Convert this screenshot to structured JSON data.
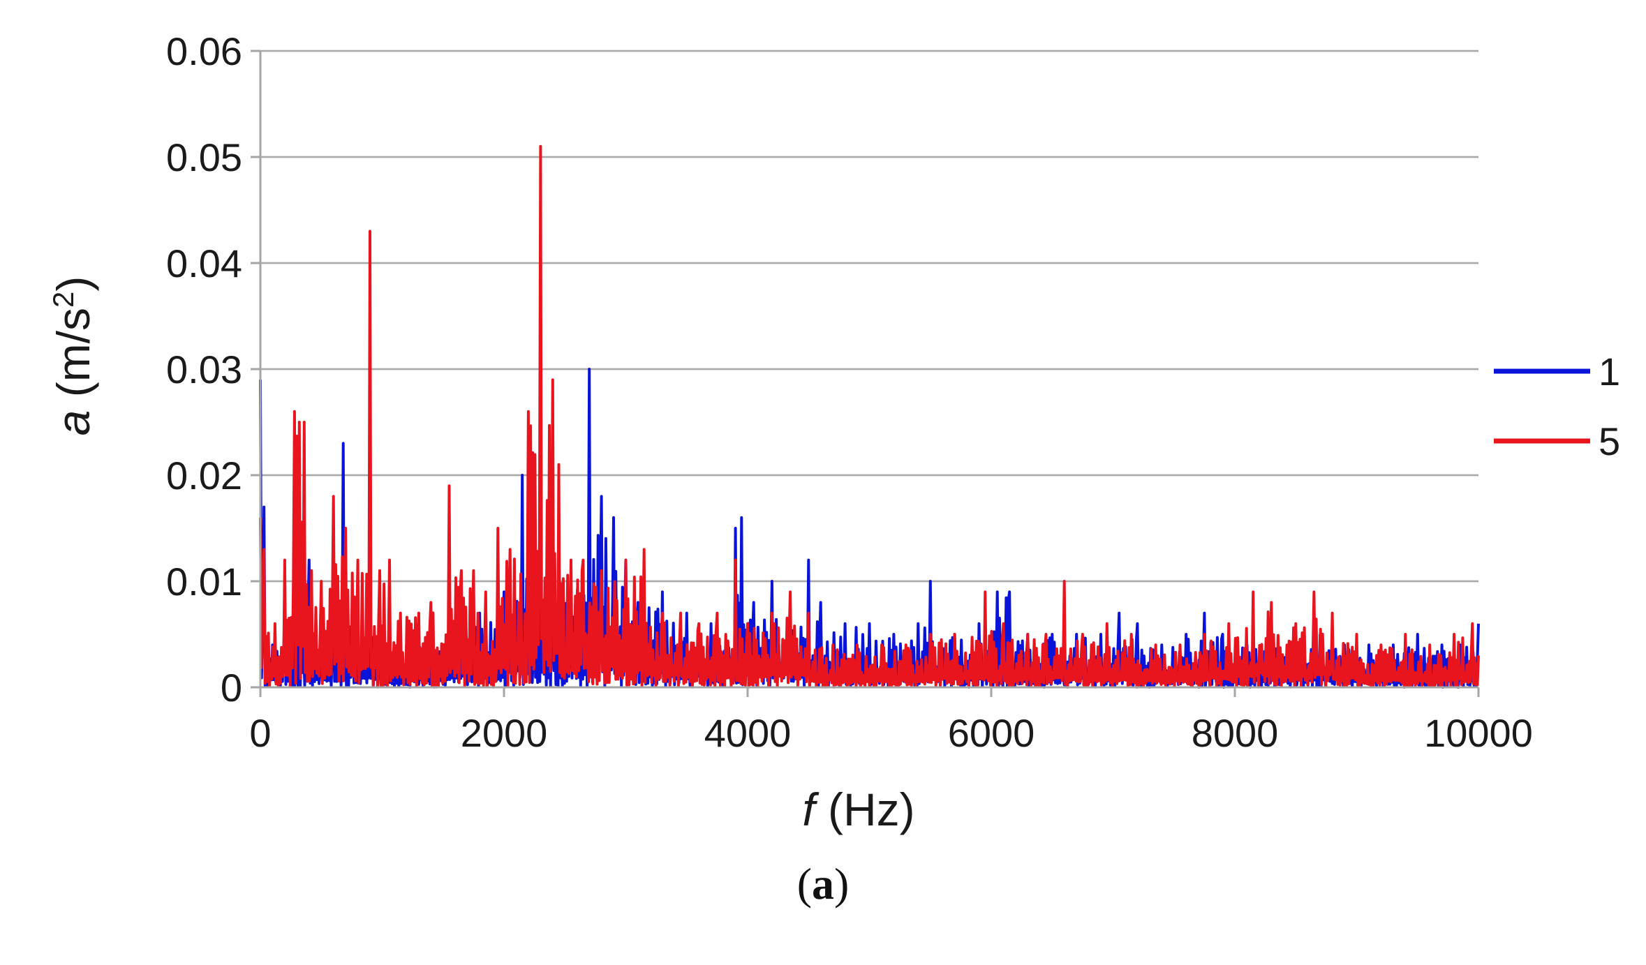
{
  "caption": {
    "open": "(",
    "letter": "a",
    "close": ")"
  },
  "chart_data": {
    "type": "line",
    "xlabel": {
      "italic": "f",
      "rest": " (Hz)"
    },
    "ylabel": {
      "italic": "a",
      "rest": " (m/s",
      "sup": "2",
      "end": ")"
    },
    "xlim": [
      0,
      10000
    ],
    "ylim": [
      0,
      0.06
    ],
    "x_ticks": [
      0,
      2000,
      4000,
      6000,
      8000,
      10000
    ],
    "x_tick_labels": [
      "0",
      "2000",
      "4000",
      "6000",
      "8000",
      "10000"
    ],
    "y_ticks": [
      0,
      0.01,
      0.02,
      0.03,
      0.04,
      0.05,
      0.06
    ],
    "y_tick_labels": [
      "0",
      "0.01",
      "0.02",
      "0.03",
      "0.04",
      "0.05",
      "0.06"
    ],
    "grid": "horizontal",
    "legend_position": "right",
    "series": [
      {
        "name": "1",
        "color": "#0a14d8",
        "peaks": [
          [
            0,
            0.029
          ],
          [
            30,
            0.017
          ],
          [
            100,
            0.004
          ],
          [
            200,
            0.006
          ],
          [
            300,
            0.009
          ],
          [
            400,
            0.012
          ],
          [
            500,
            0.004
          ],
          [
            600,
            0.009
          ],
          [
            680,
            0.023
          ],
          [
            760,
            0.008
          ],
          [
            900,
            0.006
          ],
          [
            1000,
            0.005
          ],
          [
            1200,
            0.004
          ],
          [
            1400,
            0.005
          ],
          [
            1600,
            0.006
          ],
          [
            1800,
            0.007
          ],
          [
            2000,
            0.009
          ],
          [
            2150,
            0.02
          ],
          [
            2250,
            0.011
          ],
          [
            2400,
            0.009
          ],
          [
            2550,
            0.01
          ],
          [
            2700,
            0.03
          ],
          [
            2800,
            0.018
          ],
          [
            2900,
            0.016
          ],
          [
            3000,
            0.012
          ],
          [
            3100,
            0.008
          ],
          [
            3300,
            0.009
          ],
          [
            3500,
            0.007
          ],
          [
            3700,
            0.006
          ],
          [
            3900,
            0.015
          ],
          [
            3950,
            0.016
          ],
          [
            4050,
            0.008
          ],
          [
            4200,
            0.01
          ],
          [
            4350,
            0.007
          ],
          [
            4500,
            0.012
          ],
          [
            4600,
            0.008
          ],
          [
            4800,
            0.006
          ],
          [
            5000,
            0.006
          ],
          [
            5200,
            0.005
          ],
          [
            5400,
            0.006
          ],
          [
            5500,
            0.01
          ],
          [
            5700,
            0.005
          ],
          [
            5900,
            0.006
          ],
          [
            6050,
            0.009
          ],
          [
            6150,
            0.009
          ],
          [
            6300,
            0.005
          ],
          [
            6500,
            0.005
          ],
          [
            6700,
            0.005
          ],
          [
            6900,
            0.005
          ],
          [
            7050,
            0.007
          ],
          [
            7200,
            0.006
          ],
          [
            7400,
            0.004
          ],
          [
            7600,
            0.005
          ],
          [
            7750,
            0.007
          ],
          [
            7900,
            0.005
          ],
          [
            8100,
            0.004
          ],
          [
            8300,
            0.004
          ],
          [
            8500,
            0.004
          ],
          [
            8700,
            0.005
          ],
          [
            8900,
            0.004
          ],
          [
            9100,
            0.004
          ],
          [
            9300,
            0.004
          ],
          [
            9500,
            0.005
          ],
          [
            9700,
            0.004
          ],
          [
            9850,
            0.004
          ],
          [
            10000,
            0.006
          ]
        ]
      },
      {
        "name": "5",
        "color": "#e8141e",
        "peaks": [
          [
            0,
            0.016
          ],
          [
            30,
            0.013
          ],
          [
            120,
            0.006
          ],
          [
            200,
            0.012
          ],
          [
            280,
            0.026
          ],
          [
            320,
            0.025
          ],
          [
            360,
            0.025
          ],
          [
            420,
            0.011
          ],
          [
            500,
            0.01
          ],
          [
            600,
            0.018
          ],
          [
            700,
            0.015
          ],
          [
            800,
            0.012
          ],
          [
            900,
            0.043
          ],
          [
            980,
            0.011
          ],
          [
            1060,
            0.012
          ],
          [
            1150,
            0.007
          ],
          [
            1300,
            0.007
          ],
          [
            1400,
            0.008
          ],
          [
            1550,
            0.019
          ],
          [
            1650,
            0.011
          ],
          [
            1750,
            0.011
          ],
          [
            1850,
            0.009
          ],
          [
            1950,
            0.015
          ],
          [
            2050,
            0.013
          ],
          [
            2200,
            0.026
          ],
          [
            2300,
            0.051
          ],
          [
            2400,
            0.029
          ],
          [
            2450,
            0.021
          ],
          [
            2550,
            0.012
          ],
          [
            2650,
            0.012
          ],
          [
            2800,
            0.011
          ],
          [
            3000,
            0.012
          ],
          [
            3150,
            0.013
          ],
          [
            3300,
            0.007
          ],
          [
            3450,
            0.007
          ],
          [
            3600,
            0.006
          ],
          [
            3750,
            0.007
          ],
          [
            3900,
            0.012
          ],
          [
            4000,
            0.006
          ],
          [
            4200,
            0.007
          ],
          [
            4350,
            0.009
          ],
          [
            4500,
            0.007
          ],
          [
            4700,
            0.004
          ],
          [
            4900,
            0.004
          ],
          [
            5100,
            0.004
          ],
          [
            5300,
            0.004
          ],
          [
            5500,
            0.005
          ],
          [
            5700,
            0.005
          ],
          [
            5950,
            0.009
          ],
          [
            6100,
            0.006
          ],
          [
            6300,
            0.005
          ],
          [
            6450,
            0.005
          ],
          [
            6600,
            0.01
          ],
          [
            6750,
            0.005
          ],
          [
            6950,
            0.006
          ],
          [
            7150,
            0.005
          ],
          [
            7350,
            0.004
          ],
          [
            7550,
            0.004
          ],
          [
            7750,
            0.005
          ],
          [
            7950,
            0.006
          ],
          [
            8150,
            0.009
          ],
          [
            8300,
            0.008
          ],
          [
            8500,
            0.006
          ],
          [
            8650,
            0.009
          ],
          [
            8800,
            0.007
          ],
          [
            9000,
            0.005
          ],
          [
            9200,
            0.004
          ],
          [
            9400,
            0.005
          ],
          [
            9600,
            0.004
          ],
          [
            9800,
            0.005
          ],
          [
            9950,
            0.006
          ],
          [
            10000,
            0.003
          ]
        ]
      }
    ]
  }
}
